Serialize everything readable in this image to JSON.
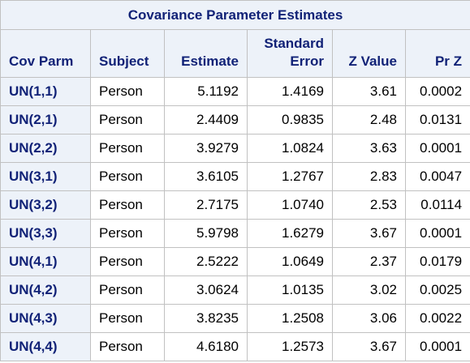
{
  "table": {
    "title": "Covariance Parameter Estimates",
    "headers": {
      "cov_parm": "Cov Parm",
      "subject": "Subject",
      "estimate": "Estimate",
      "std_error_line1": "Standard",
      "std_error_line2": "Error",
      "z_value": "Z Value",
      "pr_z": "Pr Z"
    },
    "rows": [
      {
        "cov_parm": "UN(1,1)",
        "subject": "Person",
        "estimate": "5.1192",
        "std_error": "1.4169",
        "z_value": "3.61",
        "pr_z": "0.0002"
      },
      {
        "cov_parm": "UN(2,1)",
        "subject": "Person",
        "estimate": "2.4409",
        "std_error": "0.9835",
        "z_value": "2.48",
        "pr_z": "0.0131"
      },
      {
        "cov_parm": "UN(2,2)",
        "subject": "Person",
        "estimate": "3.9279",
        "std_error": "1.0824",
        "z_value": "3.63",
        "pr_z": "0.0001"
      },
      {
        "cov_parm": "UN(3,1)",
        "subject": "Person",
        "estimate": "3.6105",
        "std_error": "1.2767",
        "z_value": "2.83",
        "pr_z": "0.0047"
      },
      {
        "cov_parm": "UN(3,2)",
        "subject": "Person",
        "estimate": "2.7175",
        "std_error": "1.0740",
        "z_value": "2.53",
        "pr_z": "0.0114"
      },
      {
        "cov_parm": "UN(3,3)",
        "subject": "Person",
        "estimate": "5.9798",
        "std_error": "1.6279",
        "z_value": "3.67",
        "pr_z": "0.0001"
      },
      {
        "cov_parm": "UN(4,1)",
        "subject": "Person",
        "estimate": "2.5222",
        "std_error": "1.0649",
        "z_value": "2.37",
        "pr_z": "0.0179"
      },
      {
        "cov_parm": "UN(4,2)",
        "subject": "Person",
        "estimate": "3.0624",
        "std_error": "1.0135",
        "z_value": "3.02",
        "pr_z": "0.0025"
      },
      {
        "cov_parm": "UN(4,3)",
        "subject": "Person",
        "estimate": "3.8235",
        "std_error": "1.2508",
        "z_value": "3.06",
        "pr_z": "0.0022"
      },
      {
        "cov_parm": "UN(4,4)",
        "subject": "Person",
        "estimate": "4.6180",
        "std_error": "1.2573",
        "z_value": "3.67",
        "pr_z": "0.0001"
      }
    ]
  },
  "colors": {
    "header_background": "#edf2f9",
    "header_text": "#112277",
    "grid_line": "#c1c1c1"
  }
}
